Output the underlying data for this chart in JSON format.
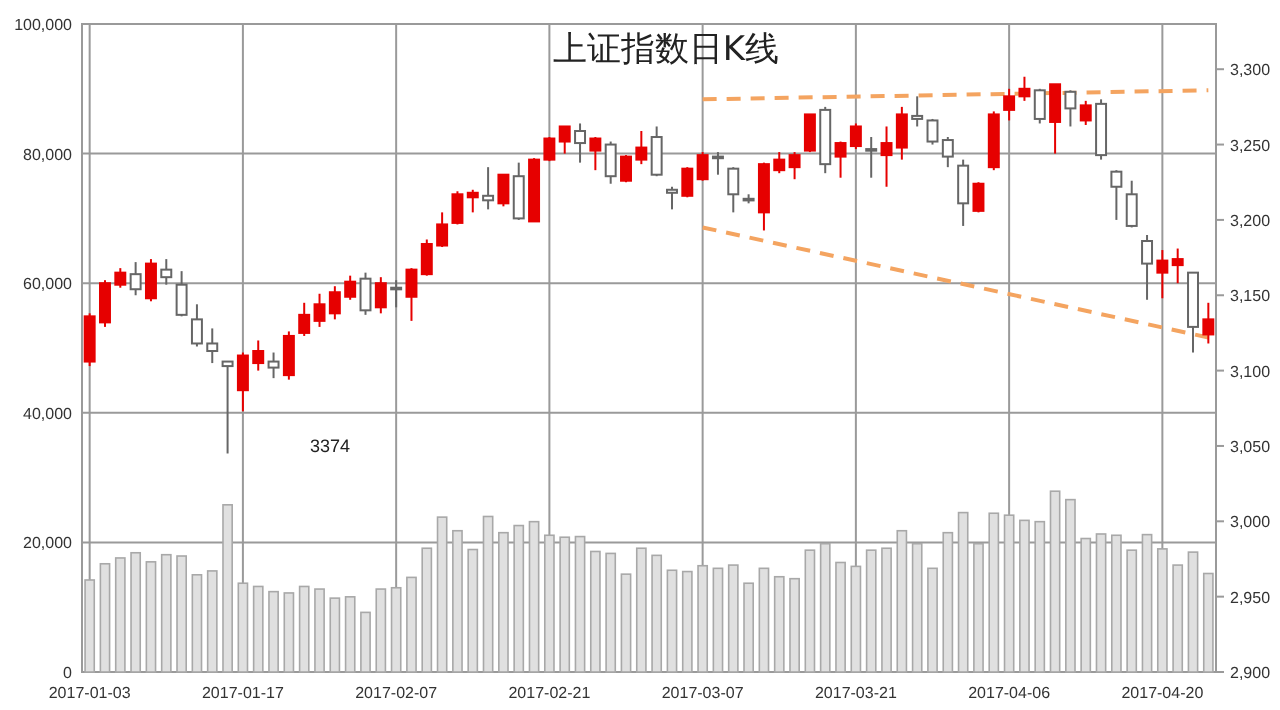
{
  "chart_data": {
    "type": "candlestick",
    "title": "上证指数日K线",
    "grid": true,
    "annotations": [
      "3374"
    ],
    "categories": [
      "2017-01-03",
      null,
      null,
      null,
      null,
      null,
      null,
      null,
      null,
      null,
      "2017-01-17",
      null,
      null,
      null,
      null,
      null,
      null,
      null,
      null,
      null,
      "2017-02-07",
      null,
      null,
      null,
      null,
      null,
      null,
      null,
      null,
      null,
      "2017-02-21",
      null,
      null,
      null,
      null,
      null,
      null,
      null,
      null,
      null,
      "2017-03-07",
      null,
      null,
      null,
      null,
      null,
      null,
      null,
      null,
      null,
      "2017-03-21",
      null,
      null,
      null,
      null,
      null,
      null,
      null,
      null,
      null,
      "2017-04-06",
      null,
      null,
      null,
      null,
      null,
      null,
      null,
      null,
      null,
      "2017-04-20",
      null,
      null,
      null
    ],
    "ylim": [
      0,
      100000
    ],
    "yticks": [
      0,
      {
        "value": 20000,
        "label": "20,000"
      },
      {
        "value": 40000,
        "label": "40,000"
      },
      {
        "value": 60000,
        "label": "60,000"
      },
      {
        "value": 80000,
        "label": "80,000"
      },
      {
        "value": 100000,
        "label": "100,000"
      }
    ],
    "y2lim": [
      2900,
      3330
    ],
    "y2ticks": [
      {
        "value": 2900,
        "label": "2,900"
      },
      {
        "value": 2950,
        "label": "2,950"
      },
      {
        "value": 3000,
        "label": "3,000"
      },
      {
        "value": 3050,
        "label": "3,050"
      },
      {
        "value": 3100,
        "label": "3,100"
      },
      {
        "value": 3150,
        "label": "3,150"
      },
      {
        "value": 3200,
        "label": "3,200"
      },
      {
        "value": 3250,
        "label": "3,250"
      },
      {
        "value": 3300,
        "label": "3,300"
      }
    ],
    "series": [
      {
        "type": "bar",
        "color": "#e0e0e0",
        "values": [
          14200,
          16700,
          17600,
          18400,
          17000,
          18100,
          17900,
          15000,
          15600,
          25800,
          13700,
          13200,
          12400,
          12200,
          13200,
          12800,
          11400,
          11600,
          9200,
          12800,
          13000,
          14600,
          19100,
          23900,
          21800,
          18900,
          24000,
          21500,
          22600,
          23200,
          21100,
          20800,
          20900,
          18600,
          18300,
          15100,
          19100,
          18000,
          15700,
          15500,
          16400,
          16000,
          16500,
          13700,
          16000,
          14700,
          14400,
          18800,
          19800,
          16900,
          16300,
          18800,
          19100,
          21800,
          19800,
          16000,
          21500,
          24600,
          19800,
          24500,
          24200,
          23400,
          23200,
          27900,
          26600,
          20600,
          21300,
          21100,
          18800,
          21200,
          19000,
          16500,
          18500,
          15200
        ]
      },
      {
        "type": "line",
        "axis": "y2",
        "color": "#f4a460",
        "line_style": "dashed",
        "values": [
          null,
          null,
          null,
          null,
          null,
          null,
          null,
          null,
          null,
          null,
          null,
          null,
          null,
          null,
          null,
          null,
          null,
          null,
          null,
          null,
          null,
          null,
          null,
          null,
          null,
          null,
          null,
          null,
          null,
          null,
          null,
          null,
          null,
          null,
          null,
          null,
          null,
          null,
          null,
          null,
          3280,
          null,
          null,
          null,
          null,
          null,
          null,
          null,
          null,
          null,
          null,
          null,
          null,
          null,
          null,
          null,
          null,
          null,
          null,
          null,
          null,
          null,
          null,
          null,
          null,
          null,
          null,
          null,
          null,
          null,
          null,
          null,
          null,
          3286
        ]
      },
      {
        "type": "line",
        "axis": "y2",
        "color": "#f4a460",
        "line_style": "dashed",
        "values": [
          null,
          null,
          null,
          null,
          null,
          null,
          null,
          null,
          null,
          null,
          null,
          null,
          null,
          null,
          null,
          null,
          null,
          null,
          null,
          null,
          null,
          null,
          null,
          null,
          null,
          null,
          null,
          null,
          null,
          null,
          null,
          null,
          null,
          null,
          null,
          null,
          null,
          null,
          null,
          null,
          3195,
          null,
          null,
          null,
          null,
          null,
          null,
          null,
          null,
          null,
          null,
          null,
          null,
          null,
          null,
          null,
          null,
          null,
          null,
          null,
          null,
          null,
          null,
          null,
          null,
          null,
          null,
          null,
          null,
          null,
          null,
          null,
          null,
          3122
        ]
      },
      {
        "type": "candlestick",
        "axis": "y2",
        "ohlc": [
          [
            3106,
            3138,
            3103,
            3136
          ],
          [
            3132,
            3160,
            3129,
            3158
          ],
          [
            3157,
            3168,
            3155,
            3165
          ],
          [
            3164,
            3172,
            3150,
            3154
          ],
          [
            3148,
            3174,
            3146,
            3171
          ],
          [
            3167,
            3174,
            3157,
            3162
          ],
          [
            3157,
            3166,
            3136,
            3137
          ],
          [
            3134,
            3144,
            3116,
            3118
          ],
          [
            3118,
            3128,
            3105,
            3113
          ],
          [
            3106,
            3106,
            3045,
            3103
          ],
          [
            3087,
            3112,
            3073,
            3110
          ],
          [
            3105,
            3120,
            3100,
            3113
          ],
          [
            3106,
            3112,
            3095,
            3102
          ],
          [
            3097,
            3126,
            3094,
            3123
          ],
          [
            3125,
            3145,
            3123,
            3137
          ],
          [
            3133,
            3151,
            3129,
            3144
          ],
          [
            3138,
            3156,
            3134,
            3152
          ],
          [
            3149,
            3163,
            3147,
            3159
          ],
          [
            3161,
            3165,
            3137,
            3140
          ],
          [
            3142,
            3162,
            3138,
            3158
          ],
          [
            3155,
            3160,
            3142,
            3154
          ],
          [
            3149,
            3168,
            3133,
            3167
          ],
          [
            3164,
            3187,
            3163,
            3184
          ],
          [
            3183,
            3205,
            3182,
            3197
          ],
          [
            3198,
            3219,
            3197,
            3217
          ],
          [
            3215,
            3220,
            3205,
            3218
          ],
          [
            3216,
            3235,
            3207,
            3213
          ],
          [
            3211,
            3230,
            3209,
            3230
          ],
          [
            3229,
            3238,
            3200,
            3201
          ],
          [
            3199,
            3241,
            3199,
            3240
          ],
          [
            3240,
            3255,
            3239,
            3254
          ],
          [
            3252,
            3262,
            3244,
            3262
          ],
          [
            3259,
            3264,
            3238,
            3251
          ],
          [
            3246,
            3255,
            3233,
            3254
          ],
          [
            3250,
            3252,
            3224,
            3229
          ],
          [
            3226,
            3243,
            3225,
            3242
          ],
          [
            3240,
            3259,
            3237,
            3248
          ],
          [
            3255,
            3262,
            3229,
            3230
          ],
          [
            3220,
            3222,
            3207,
            3218
          ],
          [
            3216,
            3235,
            3215,
            3234
          ],
          [
            3227,
            3245,
            3226,
            3243
          ],
          [
            3242,
            3245,
            3230,
            3241
          ],
          [
            3234,
            3235,
            3205,
            3217
          ],
          [
            3214,
            3217,
            3211,
            3213
          ],
          [
            3205,
            3238,
            3193,
            3237
          ],
          [
            3233,
            3245,
            3231,
            3240
          ],
          [
            3235,
            3245,
            3227,
            3243
          ],
          [
            3246,
            3270,
            3245,
            3270
          ],
          [
            3273,
            3275,
            3231,
            3237
          ],
          [
            3242,
            3252,
            3228,
            3251
          ],
          [
            3249,
            3264,
            3247,
            3262
          ],
          [
            3247,
            3255,
            3228,
            3246
          ],
          [
            3243,
            3262,
            3222,
            3251
          ],
          [
            3248,
            3275,
            3240,
            3270
          ],
          [
            3269,
            3282,
            3262,
            3267
          ],
          [
            3266,
            3267,
            3250,
            3252
          ],
          [
            3253,
            3255,
            3235,
            3242
          ],
          [
            3236,
            3240,
            3196,
            3211
          ],
          [
            3206,
            3225,
            3205,
            3224
          ],
          [
            3235,
            3272,
            3233,
            3270
          ],
          [
            3273,
            3287,
            3266,
            3282
          ],
          [
            3282,
            3295,
            3279,
            3287
          ],
          [
            3286,
            3287,
            3264,
            3267
          ],
          [
            3265,
            3290,
            3244,
            3290
          ],
          [
            3285,
            3286,
            3262,
            3274
          ],
          [
            3266,
            3279,
            3263,
            3276
          ],
          [
            3277,
            3280,
            3240,
            3243
          ],
          [
            3232,
            3233,
            3200,
            3222
          ],
          [
            3217,
            3226,
            3195,
            3196
          ],
          [
            3186,
            3190,
            3147,
            3171
          ],
          [
            3165,
            3180,
            3148,
            3173
          ],
          [
            3170,
            3181,
            3158,
            3174
          ],
          [
            3165,
            3165,
            3112,
            3129
          ],
          [
            3124,
            3145,
            3118,
            3134
          ]
        ],
        "colors": [
          "#e60000",
          "#e60000",
          "#e60000",
          "#666666",
          "#e60000",
          "#666666",
          "#666666",
          "#666666",
          "#666666",
          "#666666",
          "#e60000",
          "#e60000",
          "#666666",
          "#e60000",
          "#e60000",
          "#e60000",
          "#e60000",
          "#e60000",
          "#666666",
          "#e60000",
          "#666666",
          "#e60000",
          "#e60000",
          "#e60000",
          "#e60000",
          "#e60000",
          "#666666",
          "#e60000",
          "#666666",
          "#e60000",
          "#e60000",
          "#e60000",
          "#666666",
          "#e60000",
          "#666666",
          "#e60000",
          "#e60000",
          "#666666",
          "#666666",
          "#e60000",
          "#e60000",
          "#666666",
          "#666666",
          "#666666",
          "#e60000",
          "#e60000",
          "#e60000",
          "#e60000",
          "#666666",
          "#e60000",
          "#e60000",
          "#666666",
          "#e60000",
          "#e60000",
          "#666666",
          "#666666",
          "#666666",
          "#666666",
          "#e60000",
          "#e60000",
          "#e60000",
          "#e60000",
          "#666666",
          "#e60000",
          "#666666",
          "#e60000",
          "#666666",
          "#666666",
          "#666666",
          "#666666",
          "#e60000",
          "#e60000",
          "#666666",
          "#e60000"
        ]
      }
    ]
  }
}
